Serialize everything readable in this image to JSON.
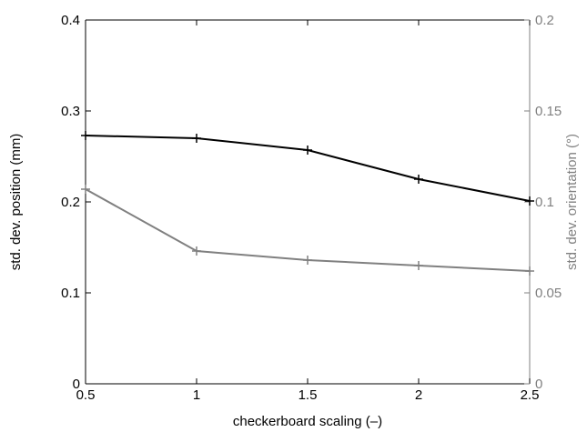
{
  "chart_data": {
    "type": "line",
    "title": "",
    "xlabel": "checkerboard scaling (–)",
    "ylabel_left": "std. dev. position (mm)",
    "ylabel_right": "std. dev. orientation (°)",
    "x": [
      0.5,
      1,
      1.5,
      2,
      2.5
    ],
    "xlim": [
      0.5,
      2.5
    ],
    "ylim_left": [
      0,
      0.4
    ],
    "ylim_right": [
      0,
      0.2
    ],
    "x_ticks": [
      "0.5",
      "1",
      "1.5",
      "2",
      "2.5"
    ],
    "y_left_ticks": [
      "0",
      "0.1",
      "0.2",
      "0.3",
      "0.4"
    ],
    "y_right_ticks": [
      "0",
      "0.05",
      "0.1",
      "0.15",
      "0.2"
    ],
    "grid": false,
    "series": [
      {
        "axis": "left",
        "color": "#000000",
        "marker": "plus",
        "values": [
          0.273,
          0.27,
          0.257,
          0.225,
          0.201
        ]
      },
      {
        "axis": "right",
        "color": "#808080",
        "marker": "plus",
        "values": [
          0.107,
          0.073,
          0.068,
          0.065,
          0.062
        ]
      }
    ],
    "colors": {
      "left_axis": "#000000",
      "right_axis": "#808080"
    }
  }
}
